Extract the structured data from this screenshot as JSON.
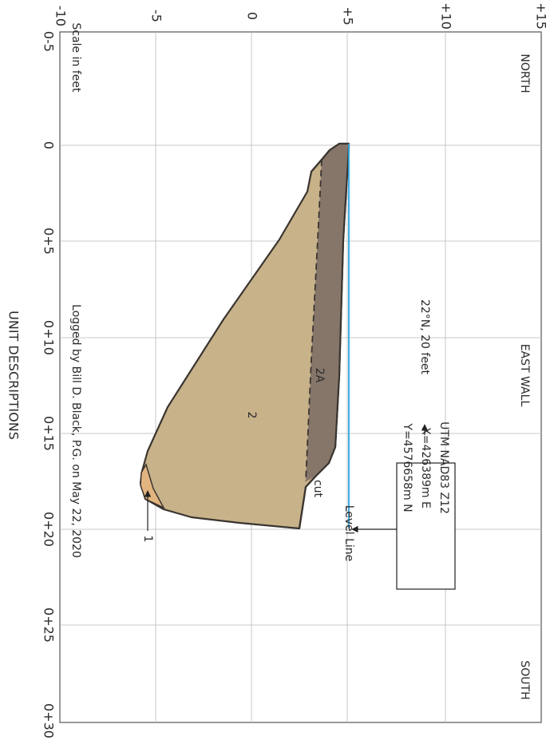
{
  "orientation_labels": {
    "north": "NORTH",
    "wall": "EAST WALL",
    "south": "SOUTH"
  },
  "elevation_axis": {
    "labels": [
      "-10",
      "-5",
      "0",
      "+5",
      "+10",
      "+15"
    ]
  },
  "station_axis": {
    "labels": [
      "0-5",
      "0",
      "0+5",
      "0+10",
      "0+15",
      "0+20",
      "0+25",
      "0+30"
    ],
    "title": "UNIT DESCRIPTIONS"
  },
  "notes": {
    "scale": "Scale in feet",
    "logged_by": "Logged by Bill D. Black, P.G. on May 22, 2020",
    "orientation": "22°N, 20 feet",
    "level_line": "Level Line"
  },
  "location_box": {
    "lines": [
      "UTM NAD83 Z12",
      "X=426389m E",
      "Y=4576658m N"
    ]
  },
  "unit_labels": [
    "2A",
    "2",
    "1"
  ],
  "contact_label": "cut"
}
